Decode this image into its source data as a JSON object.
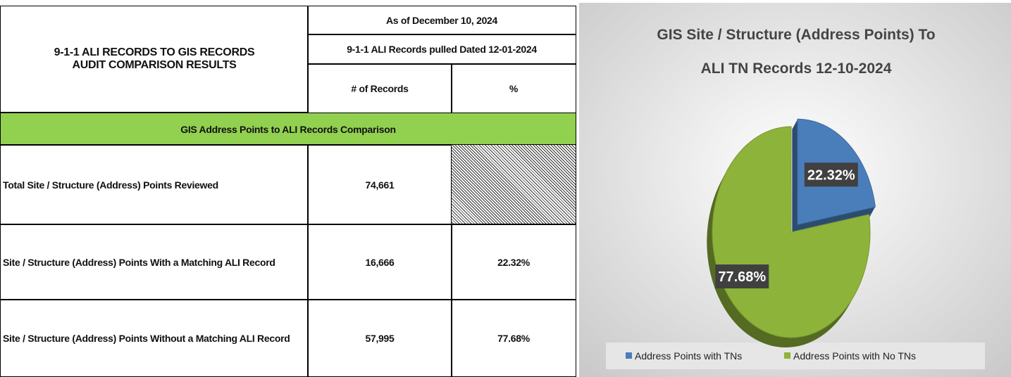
{
  "table": {
    "title": [
      "9-1-1 ALI RECORDS TO GIS RECORDS",
      "AUDIT COMPARISON RESULTS"
    ],
    "as_of": "As of December 10, 2024",
    "pulled": "9-1-1 ALI Records pulled Dated 12-01-2024",
    "columns": [
      "# of Records",
      "%"
    ],
    "section": "GIS Address Points to ALI Records Comparison",
    "rows": [
      {
        "label": "Total Site / Structure (Address) Points Reviewed",
        "records": "74,661"
      },
      {
        "label": "Site / Structure (Address) Points With a Matching ALI Record",
        "records": "16,666",
        "percent": "22.32%"
      },
      {
        "label": "Site / Structure (Address) Points  Without a Matching ALI Record",
        "records": "57,995",
        "percent": "77.68%"
      }
    ]
  },
  "chart_data": {
    "type": "pie",
    "title": [
      "GIS Site / Structure (Address Points) To",
      "ALI TN Records 12-10-2024"
    ],
    "categories": [
      "Address Points with TNs",
      "Address Points with No TNs"
    ],
    "values": [
      22.32,
      77.68
    ],
    "value_labels": [
      "22.32%",
      "77.68%"
    ],
    "colors": [
      "#4a7ebb",
      "#8db33a"
    ],
    "legend": "bottom"
  }
}
